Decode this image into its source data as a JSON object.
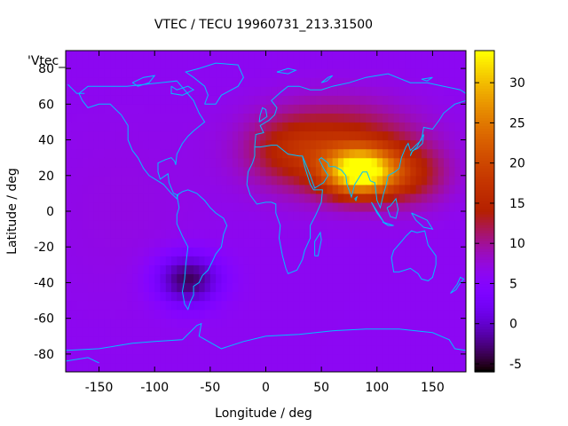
{
  "chart_data": {
    "type": "heatmap",
    "title": "VTEC / TECU 19960731_213.31500",
    "xlabel": "Longitude / deg",
    "ylabel": "Latitude / deg",
    "legend_label": "'Vtec_",
    "xlim": [
      -180,
      180
    ],
    "ylim": [
      -90,
      90
    ],
    "x_ticks": [
      -150,
      -100,
      -50,
      0,
      50,
      100,
      150
    ],
    "y_ticks": [
      -80,
      -60,
      -40,
      -20,
      0,
      20,
      40,
      60,
      80
    ],
    "colorbar": {
      "range": [
        -6,
        34
      ],
      "ticks": [
        -5,
        0,
        5,
        10,
        15,
        20,
        25,
        30
      ],
      "palette": "gnuplot rgbformulae 7,5,15"
    },
    "features": [
      {
        "name": "background",
        "value": 6
      },
      {
        "name": "equatorial-anomaly-peak",
        "lon": 85,
        "lat": 22,
        "value": 32
      },
      {
        "name": "northern-crest",
        "lon": 60,
        "lat": 40,
        "value": 20
      },
      {
        "name": "southern-minimum",
        "lon": -70,
        "lat": -38,
        "value": -4
      }
    ],
    "coastline_color": "#00c0ff"
  }
}
